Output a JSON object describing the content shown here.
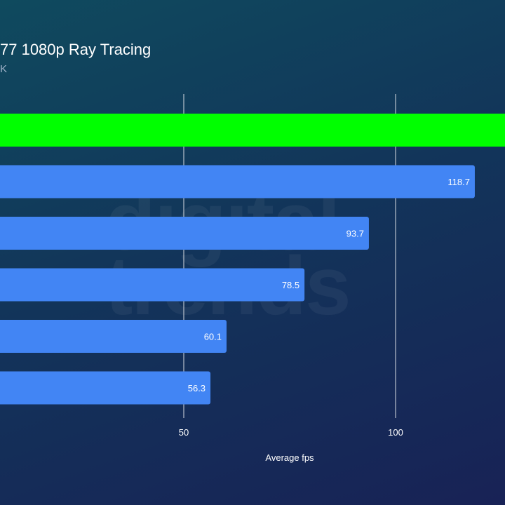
{
  "title": "77 1080p Ray Tracing",
  "subtitle": "K",
  "watermark": [
    "digital",
    "trends"
  ],
  "colors": {
    "highlight_bar": "#00ff00",
    "bar": "#4285f4",
    "gridline": "#d9dde3",
    "text": "#ffffff"
  },
  "chart_data": {
    "type": "bar",
    "orientation": "horizontal",
    "xlabel": "Average fps",
    "ylabel": "",
    "xlim": [
      0,
      130
    ],
    "xticks": [
      50,
      100
    ],
    "grid": true,
    "values": [
      130,
      118.7,
      93.7,
      78.5,
      60.1,
      56.3
    ],
    "labels": [
      "",
      "118.7",
      "93.7",
      "78.5",
      "60.1",
      "56.3"
    ],
    "highlight_index": 0
  }
}
